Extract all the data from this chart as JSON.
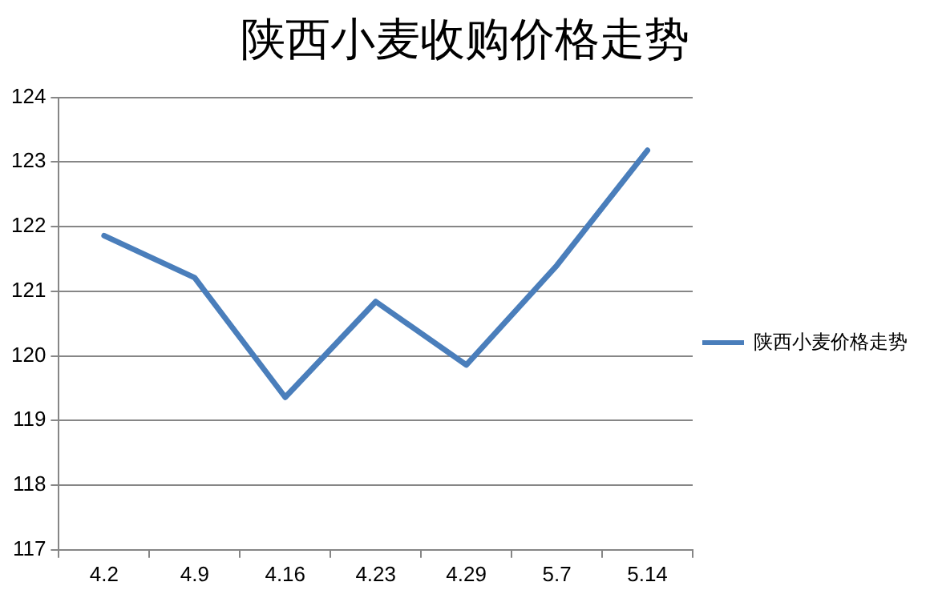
{
  "chart_data": {
    "type": "line",
    "title": "陕西小麦收购价格走势",
    "categories": [
      "4.2",
      "4.9",
      "4.16",
      "4.23",
      "4.29",
      "5.7",
      "5.14"
    ],
    "series": [
      {
        "name": "陕西小麦价格走势",
        "color": "#4a7ebb",
        "values": [
          121.86,
          121.21,
          119.36,
          120.84,
          119.86,
          121.4,
          123.18
        ]
      }
    ],
    "ylim": [
      117,
      124
    ],
    "yticks": [
      117,
      118,
      119,
      120,
      121,
      122,
      123,
      124
    ],
    "grid": "y",
    "legend": "right",
    "marker": "none",
    "line_style": "solid"
  }
}
